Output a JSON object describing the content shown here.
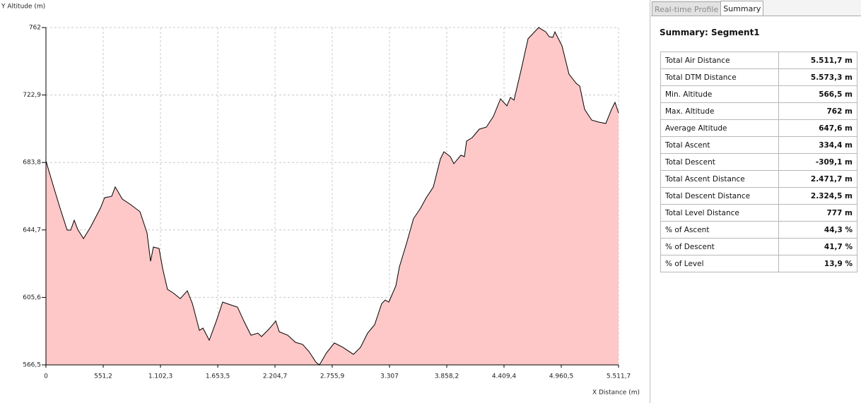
{
  "chart_data": {
    "type": "area",
    "y_label": "Y Altitude (m)",
    "x_label": "X Distance (m)",
    "color": "#ffc8c8",
    "line_color": "#000000",
    "grid": true,
    "xlim": [
      0,
      5511.7
    ],
    "ylim": [
      566.5,
      762
    ],
    "xticks": [
      0,
      {
        "value": 551.2,
        "label": "551,2"
      },
      {
        "value": 1102.3,
        "label": "1.102,3"
      },
      {
        "value": 1653.5,
        "label": "1.653,5"
      },
      {
        "value": 2204.7,
        "label": "2.204,7"
      },
      {
        "value": 2755.9,
        "label": "2.755,9"
      },
      {
        "value": 3307,
        "label": "3.307"
      },
      {
        "value": 3858.2,
        "label": "3.858,2"
      },
      {
        "value": 4409.4,
        "label": "4.409,4"
      },
      {
        "value": 4960.5,
        "label": "4.960,5"
      },
      {
        "value": 5511.7,
        "label": "5.511,7"
      }
    ],
    "yticks": [
      {
        "value": 566.5,
        "label": "566,5"
      },
      {
        "value": 605.6,
        "label": "605,6"
      },
      {
        "value": 644.7,
        "label": "644,7"
      },
      {
        "value": 683.8,
        "label": "683,8"
      },
      {
        "value": 722.9,
        "label": "722,9"
      },
      762
    ],
    "x": [
      0,
      68,
      136,
      204,
      238,
      272,
      306,
      361,
      429,
      524,
      565,
      633,
      667,
      735,
      817,
      905,
      973,
      1007,
      1034,
      1089,
      1123,
      1170,
      1225,
      1293,
      1361,
      1409,
      1477,
      1511,
      1572,
      1640,
      1701,
      1776,
      1844,
      1905,
      1973,
      2041,
      2075,
      2143,
      2212,
      2246,
      2327,
      2402,
      2470,
      2531,
      2599,
      2633,
      2701,
      2776,
      2858,
      2960,
      3028,
      3096,
      3164,
      3232,
      3266,
      3300,
      3368,
      3402,
      3470,
      3538,
      3606,
      3661,
      3729,
      3797,
      3831,
      3892,
      3926,
      3994,
      4028,
      4049,
      4103,
      4171,
      4239,
      4307,
      4375,
      4437,
      4471,
      4505,
      4573,
      4641,
      4743,
      4811,
      4845,
      4879,
      4899,
      4967,
      5035,
      5104,
      5138,
      5185,
      5253,
      5321,
      5389,
      5444,
      5478,
      5511.7
    ],
    "values": [
      684.7,
      670.8,
      657.3,
      644.6,
      644.6,
      650.3,
      645.0,
      639.7,
      646.3,
      657.3,
      663.4,
      664.2,
      669.6,
      662.6,
      659.3,
      655.3,
      643.0,
      626.6,
      634.8,
      634.0,
      622.5,
      610.3,
      608.2,
      604.9,
      609.4,
      602.1,
      586.5,
      587.8,
      580.8,
      591.9,
      602.9,
      601.3,
      600.0,
      591.9,
      583.7,
      584.9,
      582.9,
      587.0,
      591.9,
      585.7,
      583.7,
      579.6,
      578.4,
      574.3,
      568.1,
      566.5,
      573.5,
      579.2,
      576.7,
      572.6,
      576.7,
      584.9,
      589.8,
      602.1,
      604.1,
      602.9,
      612.3,
      623.3,
      636.8,
      651.2,
      657.3,
      663.4,
      669.6,
      685.9,
      690.0,
      687.2,
      683.1,
      688.0,
      687.2,
      696.2,
      698.2,
      703.1,
      704.3,
      710.5,
      720.7,
      716.6,
      721.5,
      719.9,
      737.1,
      755.5,
      762.0,
      759.5,
      756.7,
      756.3,
      759.5,
      751.4,
      735.0,
      729.7,
      728.1,
      714.6,
      708.4,
      707.2,
      706.4,
      714.6,
      718.6,
      712.5
    ]
  },
  "tabs": [
    "Real-time Profile",
    "Summary"
  ],
  "summary": {
    "title": "Summary: Segment1",
    "rows": [
      [
        "Total Air Distance",
        "5.511,7 m"
      ],
      [
        "Total DTM Distance",
        "5.573,3 m"
      ],
      [
        "Min. Altitude",
        "566,5 m"
      ],
      [
        "Max. Altitude",
        "762 m"
      ],
      [
        "Average Altitude",
        "647,6 m"
      ],
      [
        "Total Ascent",
        "334,4 m"
      ],
      [
        "Total Descent",
        "-309,1 m"
      ],
      [
        "Total Ascent Distance",
        "2.471,7 m"
      ],
      [
        "Total Descent Distance",
        "2.324,5 m"
      ],
      [
        "Total Level Distance",
        "777 m"
      ],
      [
        "% of Ascent",
        "44,3 %"
      ],
      [
        "% of Descent",
        "41,7 %"
      ],
      [
        "% of Level",
        "13,9 %"
      ]
    ]
  }
}
